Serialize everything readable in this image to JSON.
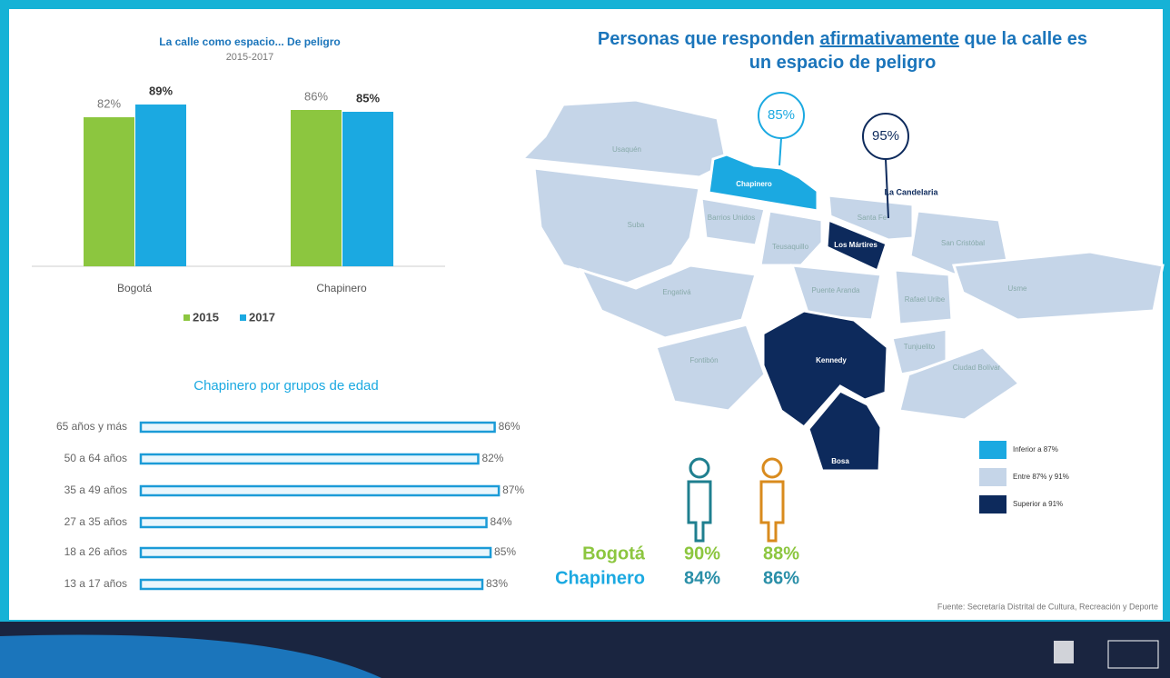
{
  "chart_data": [
    {
      "type": "bar",
      "title": "La calle como espacio... De peligro",
      "subtitle": "2015-2017",
      "categories": [
        "Bogotá",
        "Chapinero"
      ],
      "series": [
        {
          "name": "2015",
          "color": "#8cc63f",
          "values": [
            82,
            86
          ],
          "value_labels": [
            "82%",
            "86%"
          ]
        },
        {
          "name": "2017",
          "color": "#1ba9e1",
          "values": [
            89,
            85
          ],
          "value_labels": [
            "89%",
            "85%"
          ]
        }
      ]
    },
    {
      "type": "bar",
      "horizontal": true,
      "title": "Chapinero por grupos de edad",
      "color": "#1b9bd7",
      "categories": [
        "65 años y más",
        "50 a 64 años",
        "35 a 49 años",
        "27 a 35 años",
        "18 a 26 años",
        "13 a 17 años"
      ],
      "values": [
        86,
        82,
        87,
        84,
        85,
        83
      ],
      "value_labels": [
        "86%",
        "82%",
        "87%",
        "84%",
        "85%",
        "83%"
      ]
    }
  ],
  "map": {
    "title": [
      "Personas que responden",
      "afirmativamente",
      "que la calle es",
      "un espacio de peligro"
    ],
    "localities": [
      {
        "name": "Usaquén",
        "color": "#c5d5e8"
      },
      {
        "name": "Chapinero",
        "color": "#1ba9e1"
      },
      {
        "name": "Suba",
        "color": "#c5d5e8"
      },
      {
        "name": "Barrios Unidos",
        "color": "#c5d5e8"
      },
      {
        "name": "Teusaquillo",
        "color": "#c5d5e8"
      },
      {
        "name": "Los Mártires",
        "color": "#0d2a5c"
      },
      {
        "name": "Santa Fe",
        "color": "#c5d5e8"
      },
      {
        "name": "San Cristóbal",
        "color": "#c5d5e8"
      },
      {
        "name": "Usme",
        "color": "#c5d5e8"
      },
      {
        "name": "Engativá",
        "color": "#c5d5e8"
      },
      {
        "name": "Fontibón",
        "color": "#c5d5e8"
      },
      {
        "name": "Puente Aranda",
        "color": "#c5d5e8"
      },
      {
        "name": "Rafael Uribe",
        "color": "#c5d5e8"
      },
      {
        "name": "Kennedy",
        "color": "#0d2a5c"
      },
      {
        "name": "Tunjuelito",
        "color": "#c5d5e8"
      },
      {
        "name": "Ciudad Bolívar",
        "color": "#c5d5e8"
      },
      {
        "name": "Bosa",
        "color": "#0d2a5c"
      }
    ],
    "callouts": [
      {
        "label": "85%",
        "color": "#1ba9e1"
      },
      {
        "label": "95%",
        "color": "#0d2a5c",
        "locality": "La Candelaria"
      }
    ],
    "legend": [
      {
        "label": "Inferior a 87%",
        "color": "#1ba9e1"
      },
      {
        "label": "Entre 87% y 91%",
        "color": "#c5d5e8"
      },
      {
        "label": "Superior a 91%",
        "color": "#0d2a5c"
      }
    ]
  },
  "gender": {
    "rows": [
      {
        "name": "Bogotá",
        "color": "#8cc63f",
        "female": "90%",
        "male": "88%"
      },
      {
        "name": "Chapinero",
        "color": "#1ba9e1",
        "female": "84%",
        "male": "86%"
      }
    ]
  },
  "source": "Fuente: Secretaría Distrital de Cultura, Recreación y Deporte"
}
